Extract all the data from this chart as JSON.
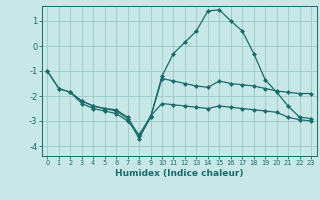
{
  "title": "",
  "xlabel": "Humidex (Indice chaleur)",
  "ylabel": "",
  "bg_color": "#c8e8e8",
  "grid_color": "#a0c8c8",
  "line_color": "#1a6b6b",
  "xlim": [
    -0.5,
    23.5
  ],
  "ylim": [
    -4.4,
    1.6
  ],
  "yticks": [
    -4,
    -3,
    -2,
    -1,
    0,
    1
  ],
  "xticks": [
    0,
    1,
    2,
    3,
    4,
    5,
    6,
    7,
    8,
    9,
    10,
    11,
    12,
    13,
    14,
    15,
    16,
    17,
    18,
    19,
    20,
    21,
    22,
    23
  ],
  "line1_x": [
    0,
    1,
    2,
    3,
    4,
    5,
    6,
    7,
    8,
    9,
    10,
    11,
    12,
    13,
    14,
    15,
    16,
    17,
    18,
    19,
    20,
    21,
    22,
    23
  ],
  "line1_y": [
    -1.0,
    -1.7,
    -1.85,
    -2.2,
    -2.4,
    -2.5,
    -2.6,
    -2.9,
    -3.7,
    -2.85,
    -1.3,
    -1.4,
    -1.5,
    -1.6,
    -1.65,
    -1.4,
    -1.5,
    -1.55,
    -1.6,
    -1.7,
    -1.8,
    -1.85,
    -1.9,
    -1.9
  ],
  "line2_x": [
    0,
    1,
    2,
    3,
    4,
    5,
    6,
    7,
    8,
    9,
    10,
    11,
    12,
    13,
    14,
    15,
    16,
    17,
    18,
    19,
    20,
    21,
    22,
    23
  ],
  "line2_y": [
    -1.0,
    -1.7,
    -1.85,
    -2.3,
    -2.5,
    -2.6,
    -2.7,
    -3.0,
    -3.55,
    -2.85,
    -1.2,
    -0.3,
    0.15,
    0.6,
    1.4,
    1.45,
    1.0,
    0.6,
    -0.3,
    -1.35,
    -1.85,
    -2.4,
    -2.85,
    -2.9
  ],
  "line3_x": [
    2,
    3,
    4,
    5,
    6,
    7,
    8,
    9,
    10,
    11,
    12,
    13,
    14,
    15,
    16,
    17,
    18,
    19,
    20,
    21,
    22,
    23
  ],
  "line3_y": [
    -1.85,
    -2.2,
    -2.4,
    -2.5,
    -2.55,
    -2.85,
    -3.6,
    -2.8,
    -2.3,
    -2.35,
    -2.4,
    -2.45,
    -2.5,
    -2.4,
    -2.45,
    -2.5,
    -2.55,
    -2.6,
    -2.65,
    -2.85,
    -2.95,
    -3.0
  ],
  "marker": "D",
  "markersize": 2.5,
  "linewidth": 0.9
}
